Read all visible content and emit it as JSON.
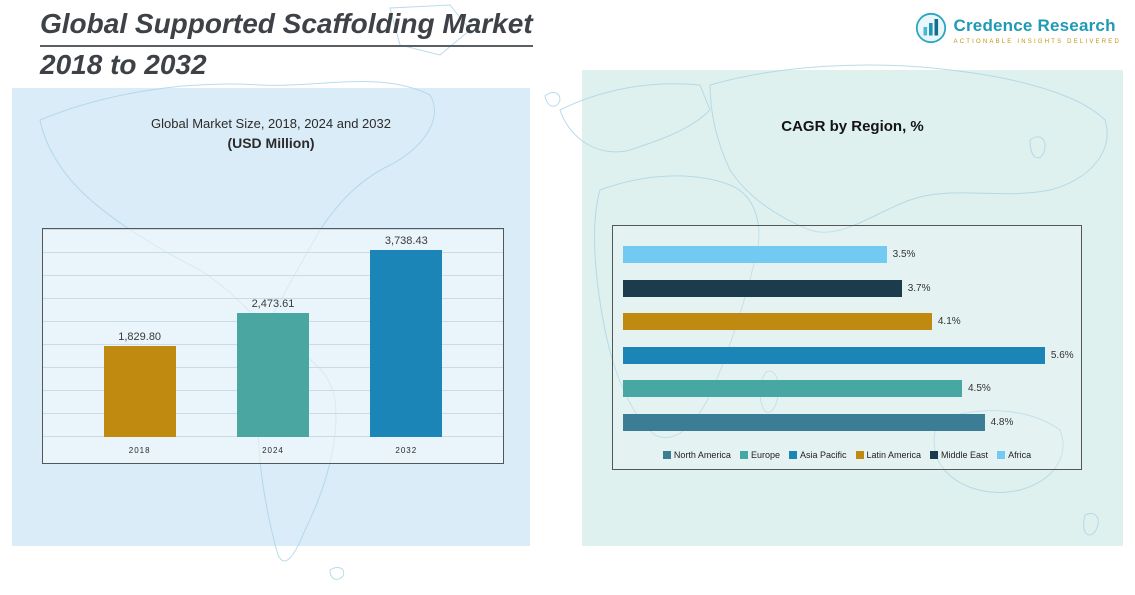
{
  "header": {
    "title_line1": "Global Supported Scaffolding Market",
    "title_line2": "2018 to 2032",
    "logo": {
      "brand": "Credence Research",
      "tagline": "Actionable Insights Delivered",
      "icon": "bar-chart-circle-icon"
    }
  },
  "left_chart": {
    "heading_line1": "Global Market Size, 2018, 2024 and 2032",
    "heading_line2": "(USD Million)"
  },
  "right_chart": {
    "heading": "CAGR by Region, %"
  },
  "colors": {
    "panel_left_bg": "#d9ecf7",
    "panel_right_bg": "#def1ee",
    "brand_teal": "#1f9ab6",
    "brand_gold": "#c2920f"
  },
  "chart_data": [
    {
      "type": "bar",
      "title": "Global Market Size, 2018, 2024 and 2032 (USD Million)",
      "categories": [
        "2018",
        "2024",
        "2032"
      ],
      "values": [
        1829.8,
        2473.61,
        3738.43
      ],
      "labels": [
        "1,829.80",
        "2,473.61",
        "3,738.43"
      ],
      "colors": [
        "#c08a10",
        "#4aa6a0",
        "#1b85b8"
      ],
      "xlabel": "",
      "ylabel": "USD Million",
      "ylim": [
        0,
        4000
      ],
      "grid": true,
      "legend_position": "none"
    },
    {
      "type": "bar",
      "orientation": "horizontal",
      "title": "CAGR by Region, %",
      "rows": [
        {
          "region": "Africa",
          "value": 3.5,
          "label": "3.5%",
          "color": "#72c9f2"
        },
        {
          "region": "Middle East",
          "value": 3.7,
          "label": "3.7%",
          "color": "#1c3b4d"
        },
        {
          "region": "Latin America",
          "value": 4.1,
          "label": "4.1%",
          "color": "#c08a10"
        },
        {
          "region": "Asia Pacific",
          "value": 5.6,
          "label": "5.6%",
          "color": "#1b85b8"
        },
        {
          "region": "Europe",
          "value": 4.5,
          "label": "4.5%",
          "color": "#47a7a2"
        },
        {
          "region": "North America",
          "value": 4.8,
          "label": "4.8%",
          "color": "#3c7d96"
        }
      ],
      "xlim": [
        0,
        6
      ],
      "grid": false,
      "legend": [
        "North America",
        "Europe",
        "Asia Pacific",
        "Latin America",
        "Middle East",
        "Africa"
      ],
      "legend_colors": [
        "#3c7d96",
        "#47a7a2",
        "#1b85b8",
        "#c08a10",
        "#1c3b4d",
        "#72c9f2"
      ],
      "legend_position": "bottom"
    }
  ]
}
